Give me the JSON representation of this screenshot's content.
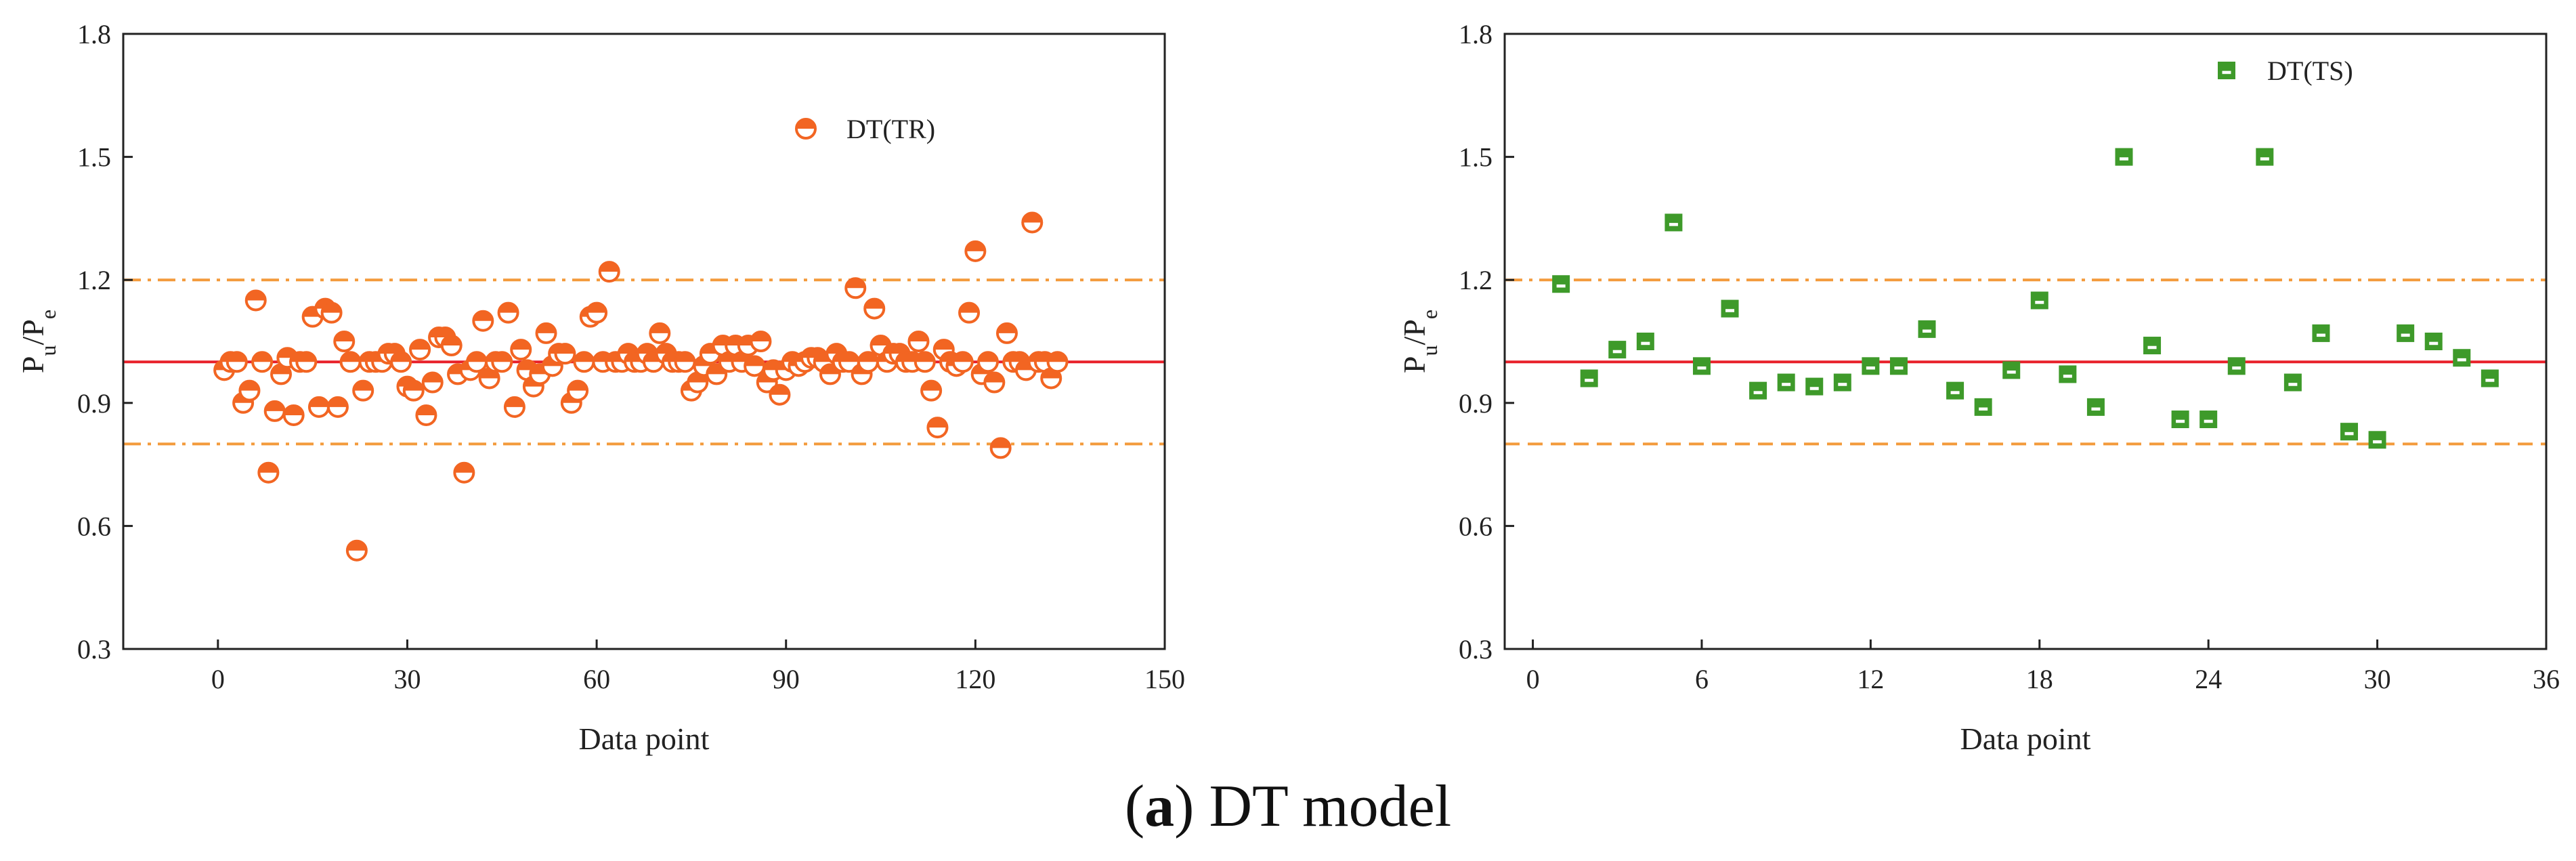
{
  "caption": {
    "label": "a",
    "text": "DT model"
  },
  "chart_data": [
    {
      "type": "scatter",
      "xlabel": "Data point",
      "ylabel_main": "P",
      "ylabel_sub1": "u",
      "ylabel_sep": "/P",
      "ylabel_sub2": "e",
      "xlim": [
        -15,
        150
      ],
      "ylim": [
        0.3,
        1.8
      ],
      "xticks": [
        0,
        30,
        60,
        90,
        120,
        150
      ],
      "yticks": [
        0.3,
        0.6,
        0.9,
        1.2,
        1.5,
        1.8
      ],
      "ytick_labels": [
        "0.3",
        "0.6",
        "0.9",
        "1.2",
        "1.5",
        "1.8"
      ],
      "grid": false,
      "legend": "top-center",
      "marker": "circle-half-filled",
      "color": "#F26522",
      "reference_lines": [
        {
          "y": 1.0,
          "style": "solid",
          "color": "#E8202A"
        },
        {
          "y": 1.2,
          "style": "dashdot",
          "color": "#F39A3B"
        },
        {
          "y": 0.8,
          "style": "dashdot",
          "color": "#F39A3B"
        }
      ],
      "series": [
        {
          "name": "DT(TR)",
          "x": [
            1,
            2,
            3,
            4,
            5,
            6,
            7,
            8,
            9,
            10,
            11,
            12,
            13,
            14,
            15,
            16,
            17,
            18,
            19,
            20,
            21,
            22,
            23,
            24,
            25,
            26,
            27,
            28,
            29,
            30,
            31,
            32,
            33,
            34,
            35,
            36,
            37,
            38,
            39,
            40,
            41,
            42,
            43,
            44,
            45,
            46,
            47,
            48,
            49,
            50,
            51,
            52,
            53,
            54,
            55,
            56,
            57,
            58,
            59,
            60,
            61,
            62,
            63,
            64,
            65,
            66,
            67,
            68,
            69,
            70,
            71,
            72,
            73,
            74,
            75,
            76,
            77,
            78,
            79,
            80,
            81,
            82,
            83,
            84,
            85,
            86,
            87,
            88,
            89,
            90,
            91,
            92,
            93,
            94,
            95,
            96,
            97,
            98,
            99,
            100,
            101,
            102,
            103,
            104,
            105,
            106,
            107,
            108,
            109,
            110,
            111,
            112,
            113,
            114,
            115,
            116,
            117,
            118,
            119,
            120,
            121,
            122,
            123,
            124,
            125,
            126,
            127,
            128,
            129,
            130,
            131,
            132,
            133
          ],
          "y": [
            0.98,
            1.0,
            1.0,
            0.9,
            0.93,
            1.15,
            1.0,
            0.73,
            0.88,
            0.97,
            1.01,
            0.87,
            1.0,
            1.0,
            1.11,
            0.89,
            1.13,
            1.12,
            0.89,
            1.05,
            1.0,
            0.54,
            0.93,
            1.0,
            1.0,
            1.0,
            1.02,
            1.02,
            1.0,
            0.94,
            0.93,
            1.03,
            0.87,
            0.95,
            1.06,
            1.06,
            1.04,
            0.97,
            0.73,
            0.98,
            1.0,
            1.1,
            0.96,
            1.0,
            1.0,
            1.12,
            0.89,
            1.03,
            0.98,
            0.94,
            0.97,
            1.07,
            0.99,
            1.02,
            1.02,
            0.9,
            0.93,
            1.0,
            1.11,
            1.12,
            1.0,
            1.22,
            1.0,
            1.0,
            1.02,
            1.0,
            1.0,
            1.02,
            1.0,
            1.07,
            1.02,
            1.0,
            1.0,
            1.0,
            0.93,
            0.95,
            0.99,
            1.02,
            0.97,
            1.04,
            1.0,
            1.04,
            1.0,
            1.04,
            0.99,
            1.05,
            0.95,
            0.98,
            0.92,
            0.98,
            1.0,
            0.99,
            1.0,
            1.01,
            1.01,
            1.0,
            0.97,
            1.02,
            1.0,
            1.0,
            1.18,
            0.97,
            1.0,
            1.13,
            1.04,
            1.0,
            1.02,
            1.02,
            1.0,
            1.0,
            1.05,
            1.0,
            0.93,
            0.84,
            1.03,
            1.0,
            0.99,
            1.0,
            1.12,
            1.27,
            0.97,
            1.0,
            0.95,
            0.79,
            1.07,
            1.0,
            1.0,
            0.98,
            1.34,
            1.0,
            1.0,
            0.96,
            1.0
          ]
        }
      ]
    },
    {
      "type": "scatter",
      "xlabel": "Data point",
      "ylabel_main": "P",
      "ylabel_sub1": "u",
      "ylabel_sep": "/P",
      "ylabel_sub2": "e",
      "xlim": [
        -1,
        36
      ],
      "ylim": [
        0.3,
        1.8
      ],
      "xticks": [
        0,
        6,
        12,
        18,
        24,
        30,
        36
      ],
      "yticks": [
        0.3,
        0.6,
        0.9,
        1.2,
        1.5,
        1.8
      ],
      "ytick_labels": [
        "0.3",
        "0.6",
        "0.9",
        "1.2",
        "1.5",
        "1.8"
      ],
      "grid": false,
      "legend": "top-center",
      "marker": "square-hollow-bar",
      "color": "#3E9A2A",
      "reference_lines": [
        {
          "y": 1.0,
          "style": "solid",
          "color": "#E8202A"
        },
        {
          "y": 1.2,
          "style": "dashdot",
          "color": "#F39A3B"
        },
        {
          "y": 0.8,
          "style": "dashed",
          "color": "#F39A3B"
        }
      ],
      "series": [
        {
          "name": "DT(TS)",
          "x": [
            1,
            2,
            3,
            4,
            5,
            6,
            7,
            8,
            9,
            10,
            11,
            12,
            13,
            14,
            15,
            16,
            17,
            18,
            19,
            20,
            21,
            22,
            23,
            24,
            25,
            26,
            27,
            28,
            29,
            30,
            31,
            32,
            33,
            34
          ],
          "y": [
            1.19,
            0.96,
            1.03,
            1.05,
            1.34,
            0.99,
            1.13,
            0.93,
            0.95,
            0.94,
            0.95,
            0.99,
            0.99,
            1.08,
            0.93,
            0.89,
            0.98,
            1.15,
            0.97,
            0.89,
            1.5,
            1.04,
            0.86,
            0.86,
            0.99,
            1.5,
            0.95,
            1.07,
            0.83,
            0.81,
            1.07,
            1.05,
            1.01,
            0.96
          ]
        }
      ]
    }
  ]
}
